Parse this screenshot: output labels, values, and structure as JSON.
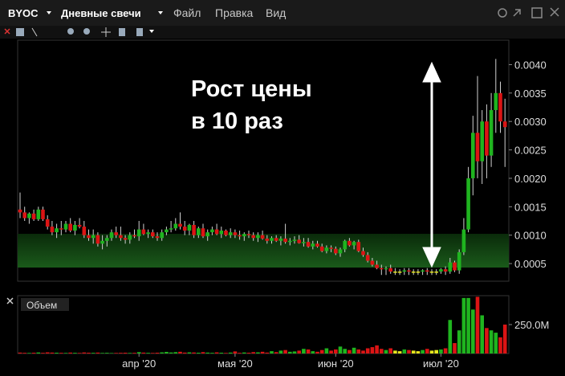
{
  "toolbar": {
    "symbol": "BYOC",
    "period": "Дневные свечи",
    "menu": [
      "Файл",
      "Правка",
      "Вид"
    ]
  },
  "chart_data": {
    "type": "candlestick",
    "categories": [
      null,
      null,
      null,
      null,
      null,
      null,
      null,
      null,
      null,
      null,
      null,
      null,
      null,
      null,
      null,
      null,
      null,
      null,
      null,
      null,
      null,
      null,
      null,
      null,
      null,
      null,
      "апр '20",
      null,
      null,
      null,
      null,
      null,
      null,
      null,
      null,
      null,
      null,
      null,
      null,
      null,
      null,
      null,
      null,
      null,
      null,
      null,
      null,
      "мая '20",
      null,
      null,
      null,
      null,
      null,
      null,
      null,
      null,
      null,
      null,
      null,
      null,
      null,
      null,
      null,
      null,
      null,
      null,
      null,
      null,
      null,
      "июн '20",
      null,
      null,
      null,
      null,
      null,
      null,
      null,
      null,
      null,
      null,
      null,
      null,
      null,
      null,
      null,
      null,
      null,
      null,
      null,
      null,
      null,
      null,
      "июл '20",
      null,
      null,
      null,
      null,
      null,
      null,
      null,
      null,
      null,
      null,
      null,
      null,
      null,
      null
    ],
    "open": [
      0.00145,
      0.0014,
      0.0013,
      0.00138,
      0.00128,
      0.00145,
      0.00128,
      0.00115,
      0.00105,
      0.00112,
      0.0011,
      0.0012,
      0.00108,
      0.00118,
      0.00115,
      0.001,
      0.00095,
      0.001,
      0.00085,
      0.0009,
      0.00095,
      0.00105,
      0.001,
      0.00095,
      0.00092,
      0.001,
      0.00098,
      0.0011,
      0.00102,
      0.00105,
      0.00098,
      0.00095,
      0.00105,
      0.0011,
      0.00112,
      0.0012,
      0.00115,
      0.00108,
      0.00118,
      0.001,
      0.00112,
      0.00098,
      0.00105,
      0.0011,
      0.00102,
      0.00108,
      0.001,
      0.00105,
      0.001,
      0.00098,
      0.00102,
      0.001,
      0.00095,
      0.001,
      0.00094,
      0.0009,
      0.00095,
      0.0009,
      0.00094,
      0.00088,
      0.0009,
      0.00092,
      0.00086,
      0.00088,
      0.0008,
      0.00085,
      0.0008,
      0.00072,
      0.00078,
      0.00076,
      0.00068,
      0.00075,
      0.0009,
      0.00082,
      0.00088,
      0.00072,
      0.00065,
      0.00055,
      0.00048,
      0.00042,
      0.0004,
      0.00042,
      0.00036,
      0.00036,
      0.00036,
      0.00038,
      0.00036,
      0.00036,
      0.00036,
      0.00038,
      0.00036,
      0.00036,
      0.00036,
      0.0004,
      0.00036,
      0.00052,
      0.00038,
      0.0007,
      0.0011,
      0.002,
      0.0028,
      0.0023,
      0.003,
      0.0024,
      0.0032,
      0.0035,
      0.003
    ],
    "high": [
      0.00175,
      0.0015,
      0.0014,
      0.00145,
      0.0015,
      0.0015,
      0.00135,
      0.00125,
      0.0012,
      0.00125,
      0.00125,
      0.0013,
      0.00125,
      0.0013,
      0.00125,
      0.0011,
      0.0011,
      0.00105,
      0.001,
      0.001,
      0.0011,
      0.00115,
      0.00115,
      0.001,
      0.00105,
      0.0011,
      0.00125,
      0.0012,
      0.0011,
      0.0011,
      0.00105,
      0.0011,
      0.00115,
      0.00125,
      0.0013,
      0.0014,
      0.00125,
      0.0012,
      0.00125,
      0.00115,
      0.0012,
      0.0011,
      0.00115,
      0.0012,
      0.00115,
      0.0011,
      0.00112,
      0.0011,
      0.00108,
      0.00105,
      0.00108,
      0.00105,
      0.00105,
      0.00108,
      0.001,
      0.00098,
      0.001,
      0.00098,
      0.0012,
      0.00095,
      0.00098,
      0.001,
      0.00095,
      0.00095,
      0.0009,
      0.0009,
      0.00085,
      0.00082,
      0.00082,
      0.0008,
      0.00078,
      0.00092,
      0.00095,
      0.0009,
      0.00092,
      0.00078,
      0.0007,
      0.0006,
      0.00055,
      0.00048,
      0.00045,
      0.00048,
      0.00042,
      0.0004,
      0.00042,
      0.00042,
      0.0004,
      0.0004,
      0.0004,
      0.00042,
      0.0004,
      0.0004,
      0.00042,
      0.00045,
      0.0006,
      0.00055,
      0.00075,
      0.0013,
      0.0022,
      0.0031,
      0.0038,
      0.0032,
      0.0033,
      0.0035,
      0.0041,
      0.0037,
      0.0034
    ],
    "low": [
      0.0013,
      0.00125,
      0.0012,
      0.00125,
      0.00125,
      0.00125,
      0.0011,
      0.001,
      0.00095,
      0.001,
      0.00105,
      0.00105,
      0.001,
      0.00112,
      0.00095,
      0.0009,
      0.00085,
      0.0008,
      0.00075,
      0.0008,
      0.0009,
      0.00095,
      0.0009,
      0.00085,
      0.00085,
      0.00095,
      0.0009,
      0.001,
      0.00095,
      0.00095,
      0.0009,
      0.0009,
      0.001,
      0.00105,
      0.00108,
      0.0011,
      0.001,
      0.001,
      0.00095,
      0.00095,
      0.00095,
      0.0009,
      0.001,
      0.001,
      0.00095,
      0.00098,
      0.00095,
      0.00095,
      0.00092,
      0.0009,
      0.00095,
      0.0009,
      0.00088,
      0.00092,
      0.00085,
      0.00085,
      0.00088,
      0.00082,
      0.00085,
      0.00082,
      0.00085,
      0.00085,
      0.0008,
      0.00078,
      0.00075,
      0.00078,
      0.0007,
      0.00068,
      0.0007,
      0.00065,
      0.00062,
      0.0007,
      0.0008,
      0.00075,
      0.0007,
      0.00062,
      0.00052,
      0.00045,
      0.0004,
      0.0003,
      0.0003,
      0.00032,
      0.0003,
      0.0003,
      0.0003,
      0.0003,
      0.0003,
      0.0003,
      0.0003,
      0.0003,
      0.0003,
      0.0003,
      0.00032,
      0.0003,
      0.00032,
      0.00035,
      0.00032,
      0.00065,
      0.00105,
      0.0017,
      0.002,
      0.0019,
      0.002,
      0.0022,
      0.0028,
      0.0028,
      0.0022
    ],
    "close": [
      0.0014,
      0.0013,
      0.00138,
      0.00128,
      0.00145,
      0.00128,
      0.00115,
      0.00105,
      0.00112,
      0.0011,
      0.0012,
      0.00108,
      0.00118,
      0.00115,
      0.001,
      0.00095,
      0.001,
      0.00085,
      0.0009,
      0.00095,
      0.00105,
      0.001,
      0.00095,
      0.00092,
      0.001,
      0.00098,
      0.0011,
      0.00102,
      0.00105,
      0.00098,
      0.00095,
      0.00105,
      0.0011,
      0.00112,
      0.0012,
      0.00115,
      0.00108,
      0.00118,
      0.001,
      0.00112,
      0.00098,
      0.00105,
      0.0011,
      0.00102,
      0.00108,
      0.001,
      0.00105,
      0.001,
      0.00098,
      0.00102,
      0.001,
      0.00095,
      0.001,
      0.00094,
      0.0009,
      0.00095,
      0.0009,
      0.00094,
      0.00088,
      0.0009,
      0.00092,
      0.00086,
      0.00088,
      0.0008,
      0.00085,
      0.0008,
      0.00072,
      0.00078,
      0.00076,
      0.00068,
      0.00075,
      0.0009,
      0.00082,
      0.00088,
      0.00072,
      0.00065,
      0.00055,
      0.00048,
      0.00042,
      0.0004,
      0.00042,
      0.00036,
      0.00036,
      0.00036,
      0.00038,
      0.00036,
      0.00036,
      0.00036,
      0.00038,
      0.00036,
      0.00036,
      0.00036,
      0.0004,
      0.00036,
      0.00052,
      0.00038,
      0.0007,
      0.0011,
      0.002,
      0.0028,
      0.0023,
      0.003,
      0.0024,
      0.0032,
      0.0035,
      0.003,
      0.0029
    ],
    "colors": {
      "up": "#1fb41f",
      "down": "#dc1414",
      "flat": "#e6e61e"
    },
    "ylim": [
      0.00019,
      0.00443
    ],
    "yticks": [
      {
        "value": 0.0005,
        "label": "0.0005"
      },
      {
        "value": 0.001,
        "label": "0.0010"
      },
      {
        "value": 0.0015,
        "label": "0.0015"
      },
      {
        "value": 0.002,
        "label": "0.0020"
      },
      {
        "value": 0.0025,
        "label": "0.0025"
      },
      {
        "value": 0.003,
        "label": "0.0030"
      },
      {
        "value": 0.0035,
        "label": "0.0035"
      },
      {
        "value": 0.004,
        "label": "0.0040"
      }
    ],
    "annotation": [
      "Рост цены",
      "в 10 раз"
    ],
    "volume": {
      "type": "bar",
      "title": "Объем",
      "values": [
        8000000,
        6000000,
        5000000,
        7000000,
        9000000,
        6000000,
        10000000,
        8000000,
        7000000,
        6000000,
        5000000,
        8000000,
        6000000,
        5000000,
        9000000,
        7000000,
        6000000,
        8000000,
        5000000,
        6000000,
        4000000,
        5000000,
        6000000,
        7000000,
        5000000,
        6000000,
        12000000,
        8000000,
        6000000,
        5000000,
        7000000,
        10000000,
        14000000,
        9000000,
        12000000,
        15000000,
        8000000,
        10000000,
        9000000,
        7000000,
        12000000,
        8000000,
        6000000,
        10000000,
        7000000,
        5000000,
        8000000,
        18000000,
        6000000,
        9000000,
        7000000,
        12000000,
        10000000,
        15000000,
        8000000,
        20000000,
        12000000,
        25000000,
        30000000,
        15000000,
        18000000,
        25000000,
        40000000,
        35000000,
        20000000,
        15000000,
        30000000,
        45000000,
        25000000,
        35000000,
        60000000,
        40000000,
        30000000,
        50000000,
        35000000,
        25000000,
        45000000,
        55000000,
        70000000,
        40000000,
        30000000,
        45000000,
        25000000,
        20000000,
        35000000,
        30000000,
        25000000,
        20000000,
        30000000,
        40000000,
        25000000,
        30000000,
        35000000,
        45000000,
        290000000,
        90000000,
        200000000,
        480000000,
        480000000,
        380000000,
        490000000,
        330000000,
        220000000,
        200000000,
        180000000,
        140000000,
        250000000
      ],
      "ylim": [
        0,
        500000000
      ],
      "yticks": [
        {
          "value": 250000000,
          "label": "250.0M"
        }
      ]
    }
  }
}
